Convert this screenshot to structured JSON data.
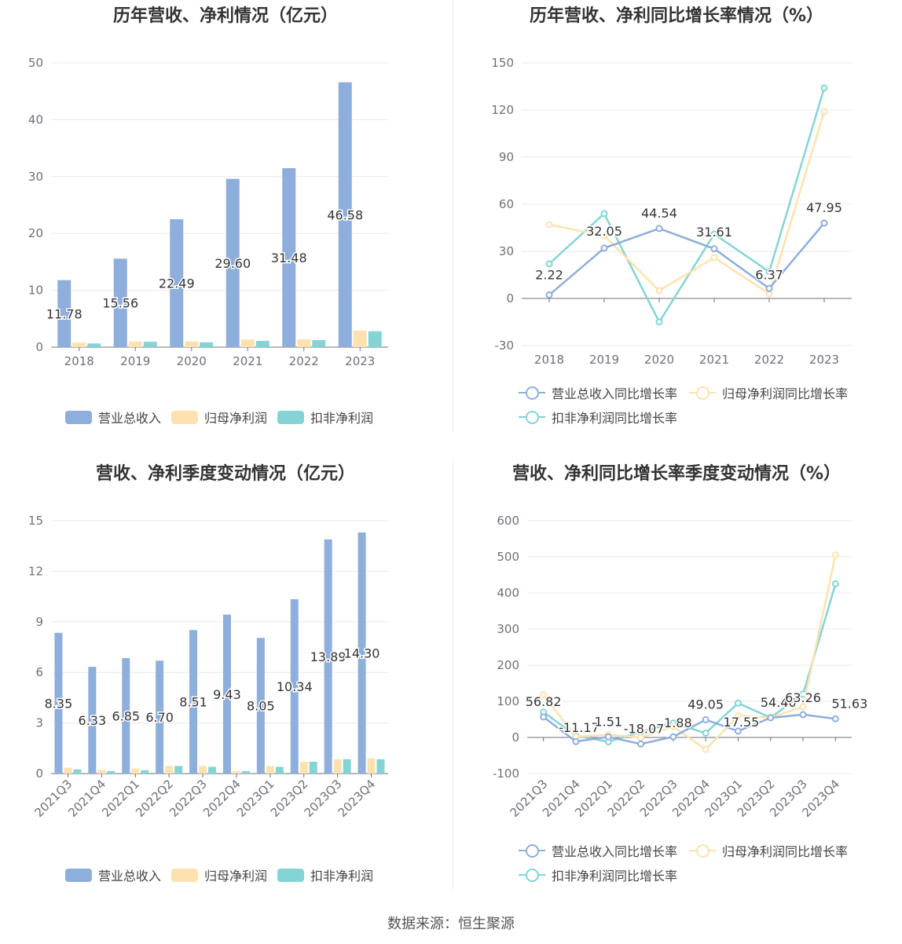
{
  "footer": {
    "source": "数据来源：恒生聚源"
  },
  "legend_labels": {
    "revenue": "营业总收入",
    "net_profit": "归母净利润",
    "deducted_profit": "扣非净利润",
    "revenue_growth": "营业总收入同比增长率",
    "net_profit_growth": "归母净利润同比增长率",
    "deducted_profit_growth": "扣非净利润同比增长率"
  },
  "colors": {
    "revenue": "#8eaedb",
    "net_profit": "#fde2b0",
    "deducted_profit": "#84d4d6",
    "grid": "#e6e9f0",
    "axis": "#6e7079"
  },
  "chart_data": [
    {
      "id": "annual-revenue-profit",
      "type": "bar",
      "title": "历年营收、净利情况（亿元）",
      "categories": [
        "2018",
        "2019",
        "2020",
        "2021",
        "2022",
        "2023"
      ],
      "ylim": [
        0,
        50
      ],
      "yticks": [
        0,
        10,
        20,
        30,
        40,
        50
      ],
      "series": [
        {
          "name": "营业总收入",
          "color": "#8eaedb",
          "values": [
            11.78,
            15.56,
            22.49,
            29.6,
            31.48,
            46.58
          ],
          "labels": [
            "11.78",
            "15.56",
            "22.49",
            "29.60",
            "31.48",
            "46.58"
          ]
        },
        {
          "name": "归母净利润",
          "color": "#fde2b0",
          "values": [
            0.8,
            1.0,
            1.0,
            1.35,
            1.35,
            2.9
          ]
        },
        {
          "name": "扣非净利润",
          "color": "#84d4d6",
          "values": [
            0.65,
            0.95,
            0.85,
            1.1,
            1.25,
            2.8
          ]
        }
      ],
      "legend": "bottom",
      "grid": true
    },
    {
      "id": "annual-growth",
      "type": "line",
      "title": "历年营收、净利同比增长率情况（%）",
      "categories": [
        "2018",
        "2019",
        "2020",
        "2021",
        "2022",
        "2023"
      ],
      "ylim": [
        -30,
        150
      ],
      "yticks": [
        -30,
        0,
        30,
        60,
        90,
        120,
        150
      ],
      "series": [
        {
          "name": "营业总收入同比增长率",
          "color": "#8eaedb",
          "values": [
            2.22,
            32.05,
            44.54,
            31.61,
            6.37,
            47.95
          ],
          "labels": [
            "2.22",
            "32.05",
            "44.54",
            "31.61",
            "6.37",
            "47.95"
          ]
        },
        {
          "name": "归母净利润同比增长率",
          "color": "#fde2b0",
          "values": [
            47,
            40,
            5,
            26,
            3,
            119
          ]
        },
        {
          "name": "扣非净利润同比增长率",
          "color": "#84d4d6",
          "values": [
            22,
            54,
            -15,
            41,
            17,
            134
          ]
        }
      ],
      "legend": "bottom",
      "grid": true
    },
    {
      "id": "quarterly-revenue-profit",
      "type": "bar",
      "title": "营收、净利季度变动情况（亿元）",
      "categories": [
        "2021Q3",
        "2021Q4",
        "2022Q1",
        "2022Q2",
        "2022Q3",
        "2022Q4",
        "2023Q1",
        "2023Q2",
        "2023Q3",
        "2023Q4"
      ],
      "ylim": [
        0,
        15
      ],
      "yticks": [
        0,
        3,
        6,
        9,
        12,
        15
      ],
      "series": [
        {
          "name": "营业总收入",
          "color": "#8eaedb",
          "values": [
            8.35,
            6.33,
            6.85,
            6.7,
            8.51,
            9.43,
            8.05,
            10.34,
            13.89,
            14.3
          ],
          "labels": [
            "8.35",
            "6.33",
            "6.85",
            "6.70",
            "8.51",
            "9.43",
            "8.05",
            "10.34",
            "13.89",
            "14.30"
          ]
        },
        {
          "name": "归母净利润",
          "color": "#fde2b0",
          "values": [
            0.35,
            0.22,
            0.3,
            0.45,
            0.45,
            0.15,
            0.45,
            0.7,
            0.85,
            0.9
          ]
        },
        {
          "name": "扣非净利润",
          "color": "#84d4d6",
          "values": [
            0.25,
            0.15,
            0.2,
            0.45,
            0.4,
            0.15,
            0.4,
            0.7,
            0.85,
            0.85
          ]
        }
      ],
      "legend": "bottom",
      "grid": true
    },
    {
      "id": "quarterly-growth",
      "type": "line",
      "title": "营收、净利同比增长率季度变动情况（%）",
      "categories": [
        "2021Q3",
        "2021Q4",
        "2022Q1",
        "2022Q2",
        "2022Q3",
        "2022Q4",
        "2023Q1",
        "2023Q2",
        "2023Q3",
        "2023Q4"
      ],
      "ylim": [
        -100,
        600
      ],
      "yticks": [
        -100,
        0,
        100,
        200,
        300,
        400,
        500,
        600
      ],
      "series": [
        {
          "name": "营业总收入同比增长率",
          "color": "#8eaedb",
          "values": [
            56.82,
            -11.17,
            1.51,
            -18.07,
            1.88,
            49.05,
            17.55,
            54.4,
            63.26,
            51.63
          ],
          "labels": [
            "56.82",
            "-11.17",
            "1.51",
            "-18.07",
            "1.88",
            "49.05",
            "17.55",
            "54.40",
            "63.26",
            "51.63"
          ]
        },
        {
          "name": "归母净利润同比增长率",
          "color": "#fde2b0",
          "values": [
            118,
            2,
            8,
            0,
            30,
            -33,
            60,
            55,
            85,
            505
          ]
        },
        {
          "name": "扣非净利润同比增长率",
          "color": "#84d4d6",
          "values": [
            70,
            5,
            -12,
            15,
            40,
            12,
            95,
            55,
            120,
            425
          ]
        }
      ],
      "legend": "bottom",
      "grid": true
    }
  ]
}
